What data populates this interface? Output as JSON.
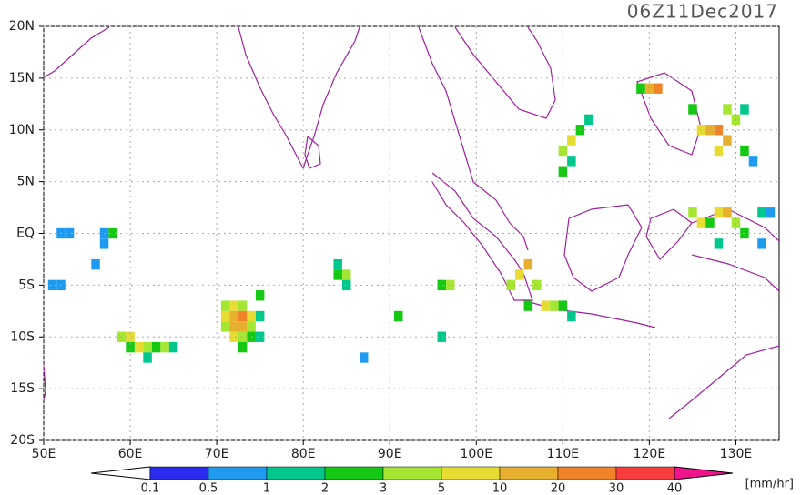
{
  "map": {
    "title": "06Z11Dec2017",
    "lonlim": [
      50,
      135
    ],
    "latlim": [
      -20,
      20
    ],
    "lon_ticks": [
      {
        "value": 50,
        "label": "50E"
      },
      {
        "value": 60,
        "label": "60E"
      },
      {
        "value": 70,
        "label": "70E"
      },
      {
        "value": 80,
        "label": "80E"
      },
      {
        "value": 90,
        "label": "90E"
      },
      {
        "value": 100,
        "label": "100E"
      },
      {
        "value": 110,
        "label": "110E"
      },
      {
        "value": 120,
        "label": "120E"
      },
      {
        "value": 130,
        "label": "130E"
      }
    ],
    "lat_ticks": [
      {
        "value": 20,
        "label": "20N"
      },
      {
        "value": 15,
        "label": "15N"
      },
      {
        "value": 10,
        "label": "10N"
      },
      {
        "value": 5,
        "label": "5N"
      },
      {
        "value": 0,
        "label": "EQ"
      },
      {
        "value": -5,
        "label": "5S"
      },
      {
        "value": -10,
        "label": "10S"
      },
      {
        "value": -15,
        "label": "15S"
      },
      {
        "value": -20,
        "label": "20S"
      }
    ],
    "grid": true,
    "colorbar": {
      "levels": [
        0.1,
        0.5,
        1,
        2,
        3,
        5,
        10,
        20,
        30,
        40
      ],
      "colors": [
        "#ffffff",
        "#2b2bf0",
        "#1e9bf0",
        "#00c88c",
        "#14c814",
        "#a5e632",
        "#e6dc32",
        "#e6af2d",
        "#f08228",
        "#fa3c3c",
        "#f0148c"
      ],
      "unit": "[mm/hr]"
    },
    "cells": [
      [
        71,
        -7,
        3
      ],
      [
        72,
        -7,
        5
      ],
      [
        73,
        -7,
        3
      ],
      [
        71,
        -8,
        5
      ],
      [
        72,
        -8,
        10
      ],
      [
        73,
        -8,
        20
      ],
      [
        74,
        -8,
        5
      ],
      [
        71,
        -9,
        3
      ],
      [
        72,
        -9,
        10
      ],
      [
        73,
        -9,
        10
      ],
      [
        74,
        -9,
        3
      ],
      [
        72,
        -10,
        5
      ],
      [
        73,
        -10,
        3
      ],
      [
        74,
        -10,
        2
      ],
      [
        75,
        -10,
        1
      ],
      [
        73,
        -11,
        2
      ],
      [
        75,
        -6,
        2
      ],
      [
        75,
        -8,
        1
      ],
      [
        59,
        -10,
        3
      ],
      [
        60,
        -10,
        5
      ],
      [
        61,
        -11,
        5
      ],
      [
        62,
        -11,
        3
      ],
      [
        63,
        -11,
        2
      ],
      [
        64,
        -11,
        3
      ],
      [
        60,
        -11,
        2
      ],
      [
        65,
        -11,
        1
      ],
      [
        62,
        -12,
        1
      ],
      [
        52,
        0,
        0.5
      ],
      [
        53,
        0,
        0.5
      ],
      [
        57,
        0,
        0.5
      ],
      [
        58,
        0,
        2
      ],
      [
        57,
        -1,
        0.5
      ],
      [
        51,
        -5,
        0.5
      ],
      [
        52,
        -5,
        0.5
      ],
      [
        56,
        -3,
        0.5
      ],
      [
        84,
        -4,
        2
      ],
      [
        85,
        -4,
        3
      ],
      [
        84,
        -3,
        1
      ],
      [
        85,
        -5,
        1
      ],
      [
        96,
        -5,
        2
      ],
      [
        97,
        -5,
        3
      ],
      [
        91,
        -8,
        2
      ],
      [
        96,
        -10,
        1
      ],
      [
        87,
        -12,
        0.5
      ],
      [
        126,
        10,
        5
      ],
      [
        127,
        10,
        10
      ],
      [
        128,
        10,
        20
      ],
      [
        129,
        9,
        10
      ],
      [
        130,
        11,
        3
      ],
      [
        131,
        12,
        1
      ],
      [
        131,
        8,
        2
      ],
      [
        132,
        7,
        0.5
      ],
      [
        128,
        8,
        5
      ],
      [
        129,
        12,
        3
      ],
      [
        125,
        12,
        2
      ],
      [
        125,
        2,
        3
      ],
      [
        126,
        1,
        5
      ],
      [
        127,
        1,
        2
      ],
      [
        128,
        2,
        5
      ],
      [
        129,
        2,
        10
      ],
      [
        130,
        1,
        3
      ],
      [
        131,
        0,
        2
      ],
      [
        133,
        2,
        1
      ],
      [
        134,
        2,
        0.5
      ],
      [
        133,
        -1,
        0.5
      ],
      [
        128,
        -1,
        1
      ],
      [
        104,
        -5,
        3
      ],
      [
        105,
        -4,
        5
      ],
      [
        106,
        -3,
        10
      ],
      [
        107,
        -5,
        3
      ],
      [
        108,
        -7,
        5
      ],
      [
        109,
        -7,
        3
      ],
      [
        110,
        -7,
        2
      ],
      [
        111,
        -8,
        1
      ],
      [
        106,
        -7,
        2
      ],
      [
        110,
        8,
        3
      ],
      [
        111,
        9,
        5
      ],
      [
        112,
        10,
        2
      ],
      [
        113,
        11,
        1
      ],
      [
        110,
        6,
        2
      ],
      [
        111,
        7,
        1
      ],
      [
        120,
        14,
        10
      ],
      [
        121,
        14,
        20
      ],
      [
        119,
        14,
        2
      ]
    ]
  }
}
